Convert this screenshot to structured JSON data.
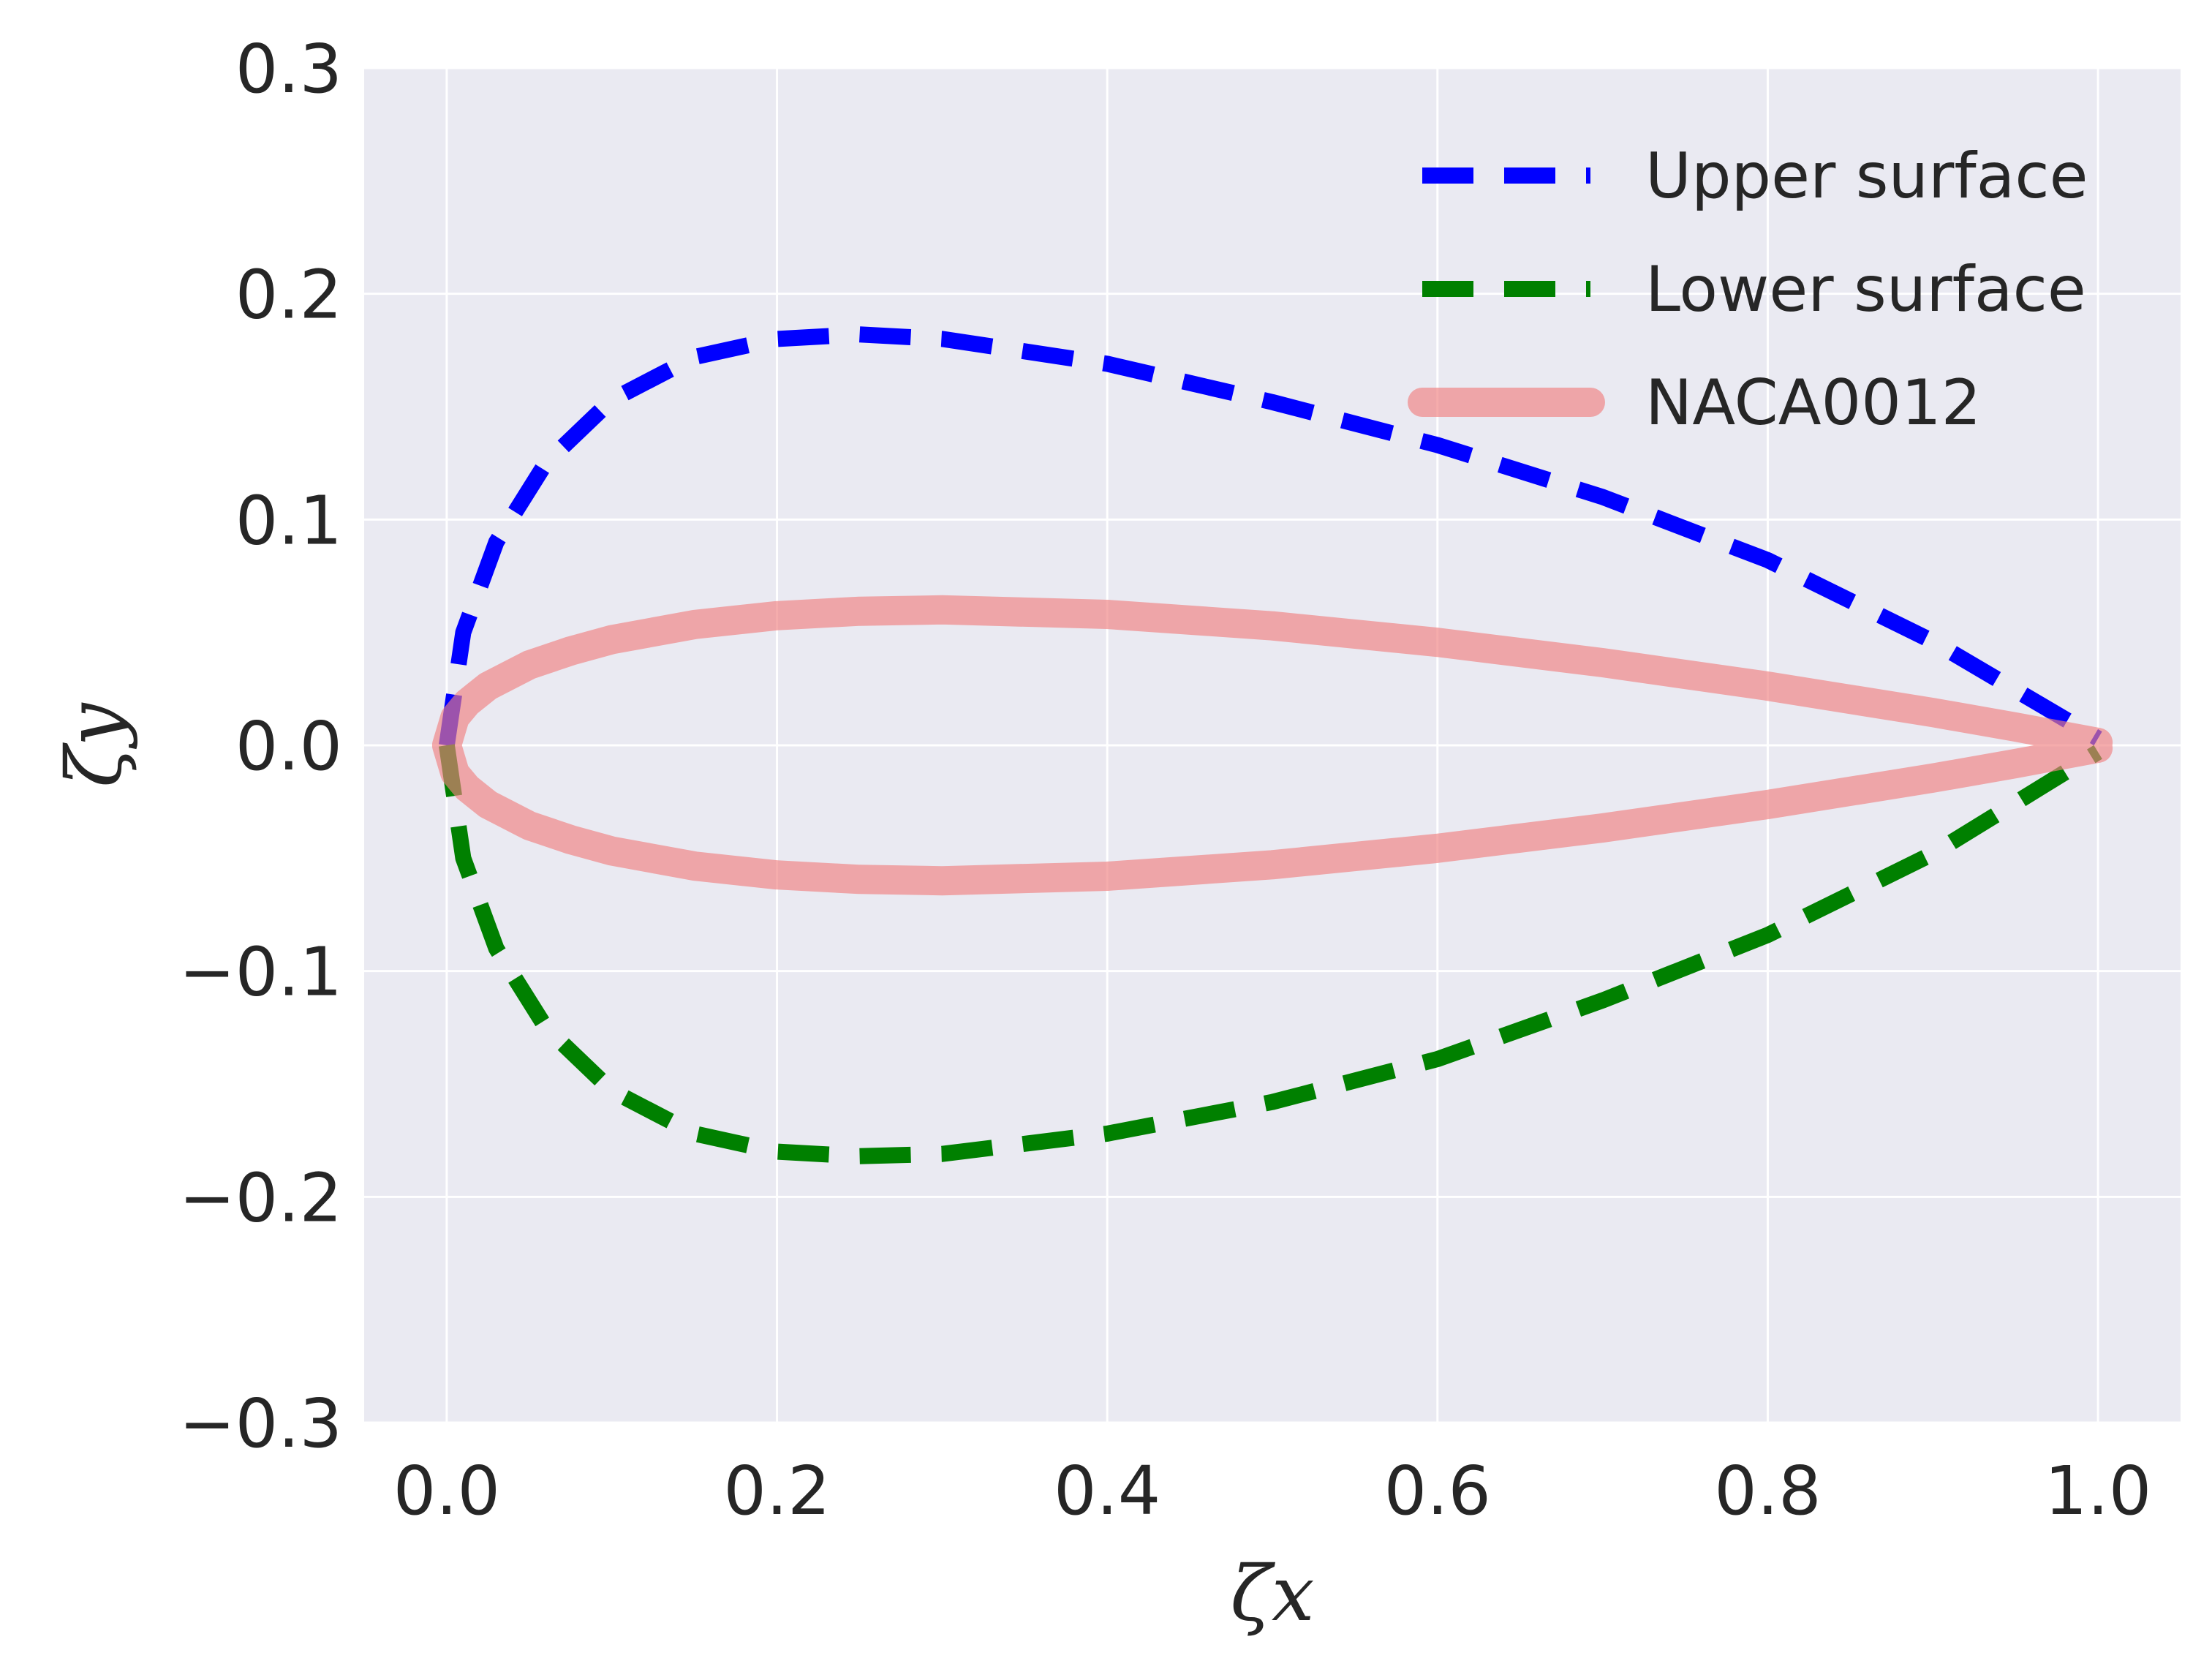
{
  "chart_data": {
    "type": "line",
    "title": "",
    "xlabel": "ζx",
    "ylabel": "ζy",
    "xlim": [
      -0.05,
      1.05
    ],
    "ylim": [
      -0.3,
      0.3
    ],
    "xticks": [
      0.0,
      0.2,
      0.4,
      0.6,
      0.8,
      1.0
    ],
    "xtick_labels": [
      "0.0",
      "0.2",
      "0.4",
      "0.6",
      "0.8",
      "1.0"
    ],
    "yticks": [
      0.3,
      0.2,
      0.1,
      0.0,
      -0.1,
      -0.2,
      -0.3
    ],
    "ytick_labels": [
      "0.3",
      "0.2",
      "0.1",
      "0.0",
      "−0.1",
      "−0.2",
      "−0.3"
    ],
    "grid": true,
    "legend_position": "top-right",
    "background_color": "#eaeaf2",
    "series": [
      {
        "name": "Upper surface",
        "style": "dashed",
        "color": "#0000ff",
        "x": [
          0.0,
          0.01,
          0.03,
          0.06,
          0.1,
          0.15,
          0.2,
          0.25,
          0.3,
          0.4,
          0.5,
          0.6,
          0.7,
          0.8,
          0.9,
          1.0
        ],
        "y": [
          0.0,
          0.05,
          0.09,
          0.125,
          0.153,
          0.172,
          0.18,
          0.182,
          0.18,
          0.169,
          0.152,
          0.133,
          0.11,
          0.082,
          0.046,
          0.003
        ]
      },
      {
        "name": "Lower surface",
        "style": "dashed",
        "color": "#008000",
        "x": [
          0.0,
          0.01,
          0.03,
          0.06,
          0.1,
          0.15,
          0.2,
          0.25,
          0.3,
          0.4,
          0.5,
          0.6,
          0.7,
          0.8,
          0.9,
          1.0
        ],
        "y": [
          0.0,
          -0.05,
          -0.09,
          -0.125,
          -0.153,
          -0.172,
          -0.18,
          -0.182,
          -0.181,
          -0.172,
          -0.158,
          -0.139,
          -0.113,
          -0.084,
          -0.048,
          -0.003
        ]
      },
      {
        "name": "NACA0012",
        "style": "solid",
        "color": "#f08080",
        "x_upper": [
          0.0,
          0.005,
          0.0125,
          0.025,
          0.05,
          0.075,
          0.1,
          0.15,
          0.2,
          0.25,
          0.3,
          0.4,
          0.5,
          0.6,
          0.7,
          0.8,
          0.9,
          0.95,
          1.0
        ],
        "y_upper": [
          0.0,
          0.0123,
          0.0189,
          0.0262,
          0.0356,
          0.0418,
          0.0468,
          0.0535,
          0.0574,
          0.0594,
          0.06,
          0.058,
          0.0529,
          0.0456,
          0.0366,
          0.0262,
          0.0145,
          0.0081,
          0.0013
        ],
        "x_lower": [
          0.0,
          0.005,
          0.0125,
          0.025,
          0.05,
          0.075,
          0.1,
          0.15,
          0.2,
          0.25,
          0.3,
          0.4,
          0.5,
          0.6,
          0.7,
          0.8,
          0.9,
          0.95,
          1.0
        ],
        "y_lower": [
          0.0,
          -0.0123,
          -0.0189,
          -0.0262,
          -0.0356,
          -0.0418,
          -0.0468,
          -0.0535,
          -0.0574,
          -0.0594,
          -0.06,
          -0.058,
          -0.0529,
          -0.0456,
          -0.0366,
          -0.0262,
          -0.0145,
          -0.0081,
          -0.0013
        ]
      }
    ]
  }
}
